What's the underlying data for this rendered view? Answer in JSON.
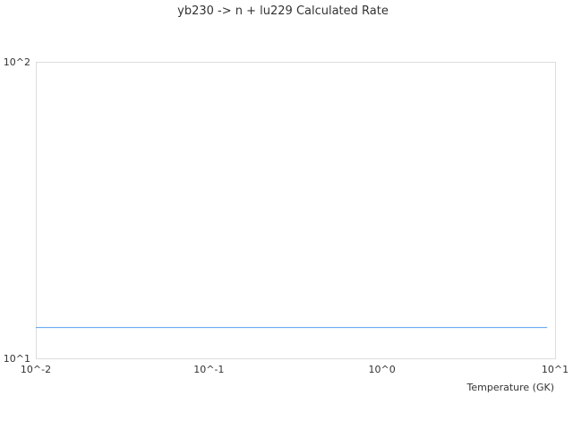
{
  "chart_data": {
    "type": "line",
    "title": "yb230 -> n + lu229 Calculated Rate",
    "xlabel": "Temperature (GK)",
    "ylabel": "",
    "xscale": "log",
    "yscale": "log",
    "xlim": [
      0.01,
      10
    ],
    "ylim": [
      10,
      100
    ],
    "xticks": [
      "10^-2",
      "10^-1",
      "10^0",
      "10^1"
    ],
    "yticks": [
      "10^1",
      "10^2"
    ],
    "grid": false,
    "series": [
      {
        "x": [
          0.01,
          9.0
        ],
        "y": [
          12.7,
          12.7
        ],
        "color": "#5aa0f0"
      }
    ]
  }
}
